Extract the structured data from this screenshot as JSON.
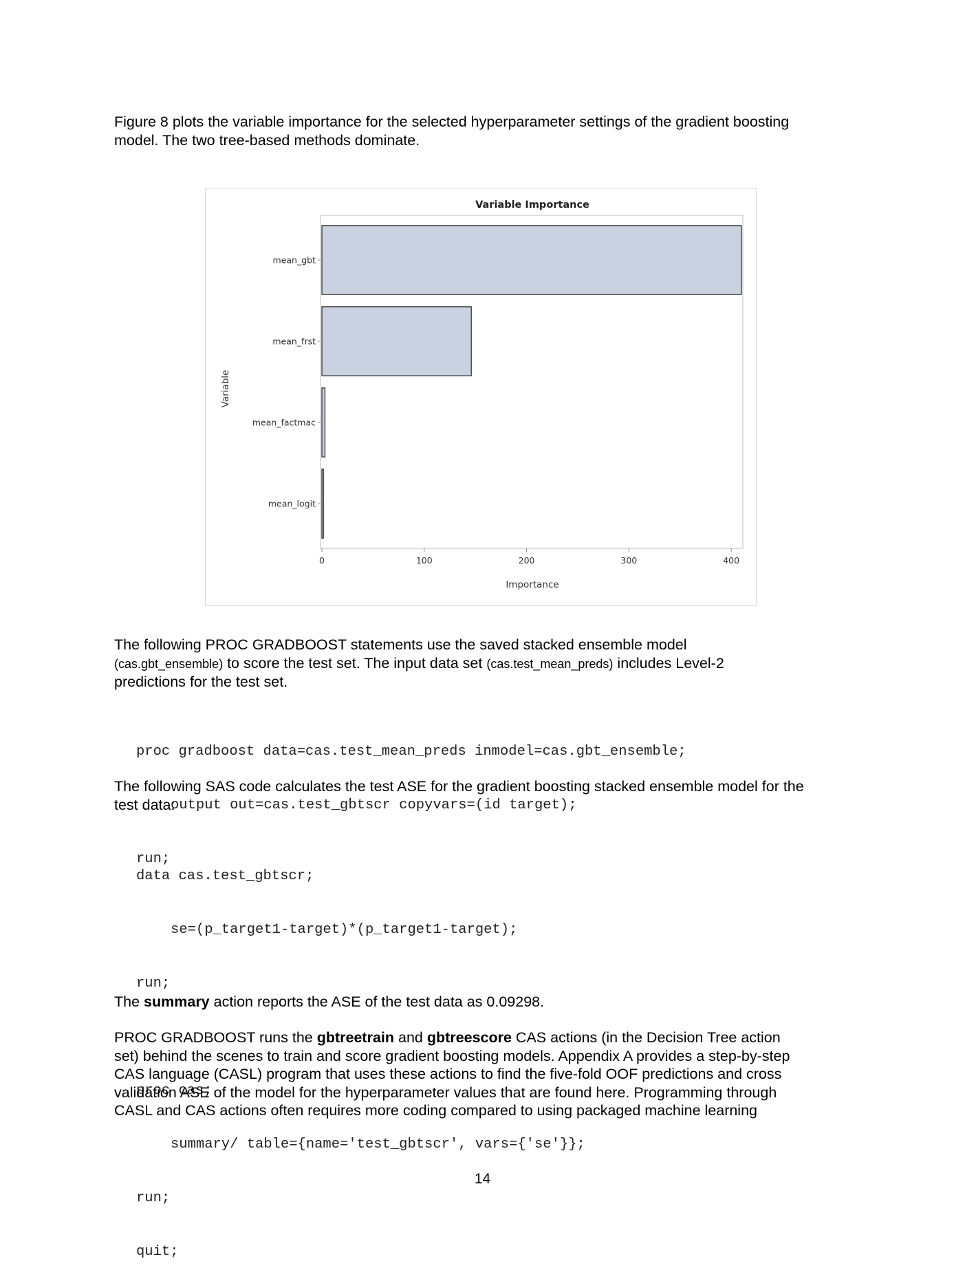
{
  "intro": {
    "line1": "Figure 8 plots the variable importance for the selected hyperparameter settings of the gradient boosting",
    "line2": "model. The two tree-based methods dominate."
  },
  "chart_data": {
    "type": "bar",
    "orientation": "horizontal",
    "title": "Variable Importance",
    "xlabel": "Importance",
    "ylabel": "Variable",
    "categories": [
      "mean_gbt",
      "mean_frst",
      "mean_factmac",
      "mean_logit"
    ],
    "values": [
      410,
      146,
      3,
      1.5
    ],
    "xlim": [
      0,
      410
    ],
    "xticks": [
      0,
      100,
      200,
      300,
      400
    ],
    "grid": false,
    "colors": {
      "bar_fill": "#c8d2e1",
      "bar_stroke": "#333333",
      "frame": "#bdbdbd"
    }
  },
  "para2": {
    "line1": "The following PROC GRADBOOST statements use the saved stacked ensemble model",
    "line2_a": "(cas.gbt_ensemble)",
    "line2_b": " to score the test set. The input data set ",
    "line2_c": "(cas.test_mean_preds)",
    "line2_d": " includes Level-2",
    "line3": "predictions for the test set."
  },
  "code1": [
    "proc gradboost data=cas.test_mean_preds inmodel=cas.gbt_ensemble;",
    "output out=cas.test_gbtscr copyvars=(id target);",
    "run;"
  ],
  "para3": {
    "line1": "The following SAS code calculates the test ASE for the gradient boosting stacked ensemble model for the",
    "line2": "test data:"
  },
  "code2": [
    "data cas.test_gbtscr;",
    "se=(p_target1-target)*(p_target1-target);",
    "run;",
    "proc cas;",
    "summary/ table={name='test_gbtscr', vars={'se'}};",
    "run;",
    "quit;"
  ],
  "para4": {
    "a": "The ",
    "b": "summary",
    "c": " action reports the ASE of the test data as 0.09298."
  },
  "para5": {
    "l1_a": "PROC GRADBOOST runs the ",
    "l1_b": "gbtreetrain",
    "l1_c": " and ",
    "l1_d": "gbtreescore",
    "l1_e": " CAS actions (in the Decision Tree action",
    "l2": "set) behind the scenes to train and score gradient boosting models. Appendix A provides a step-by-step",
    "l3": "CAS language (CASL) program that uses these actions to find the five-fold OOF predictions and cross",
    "l4": "validation ASE of the model for the hyperparameter values that are found here. Programming through",
    "l5": "CASL and CAS actions often requires more coding compared to using packaged machine learning"
  },
  "page_number": "14"
}
